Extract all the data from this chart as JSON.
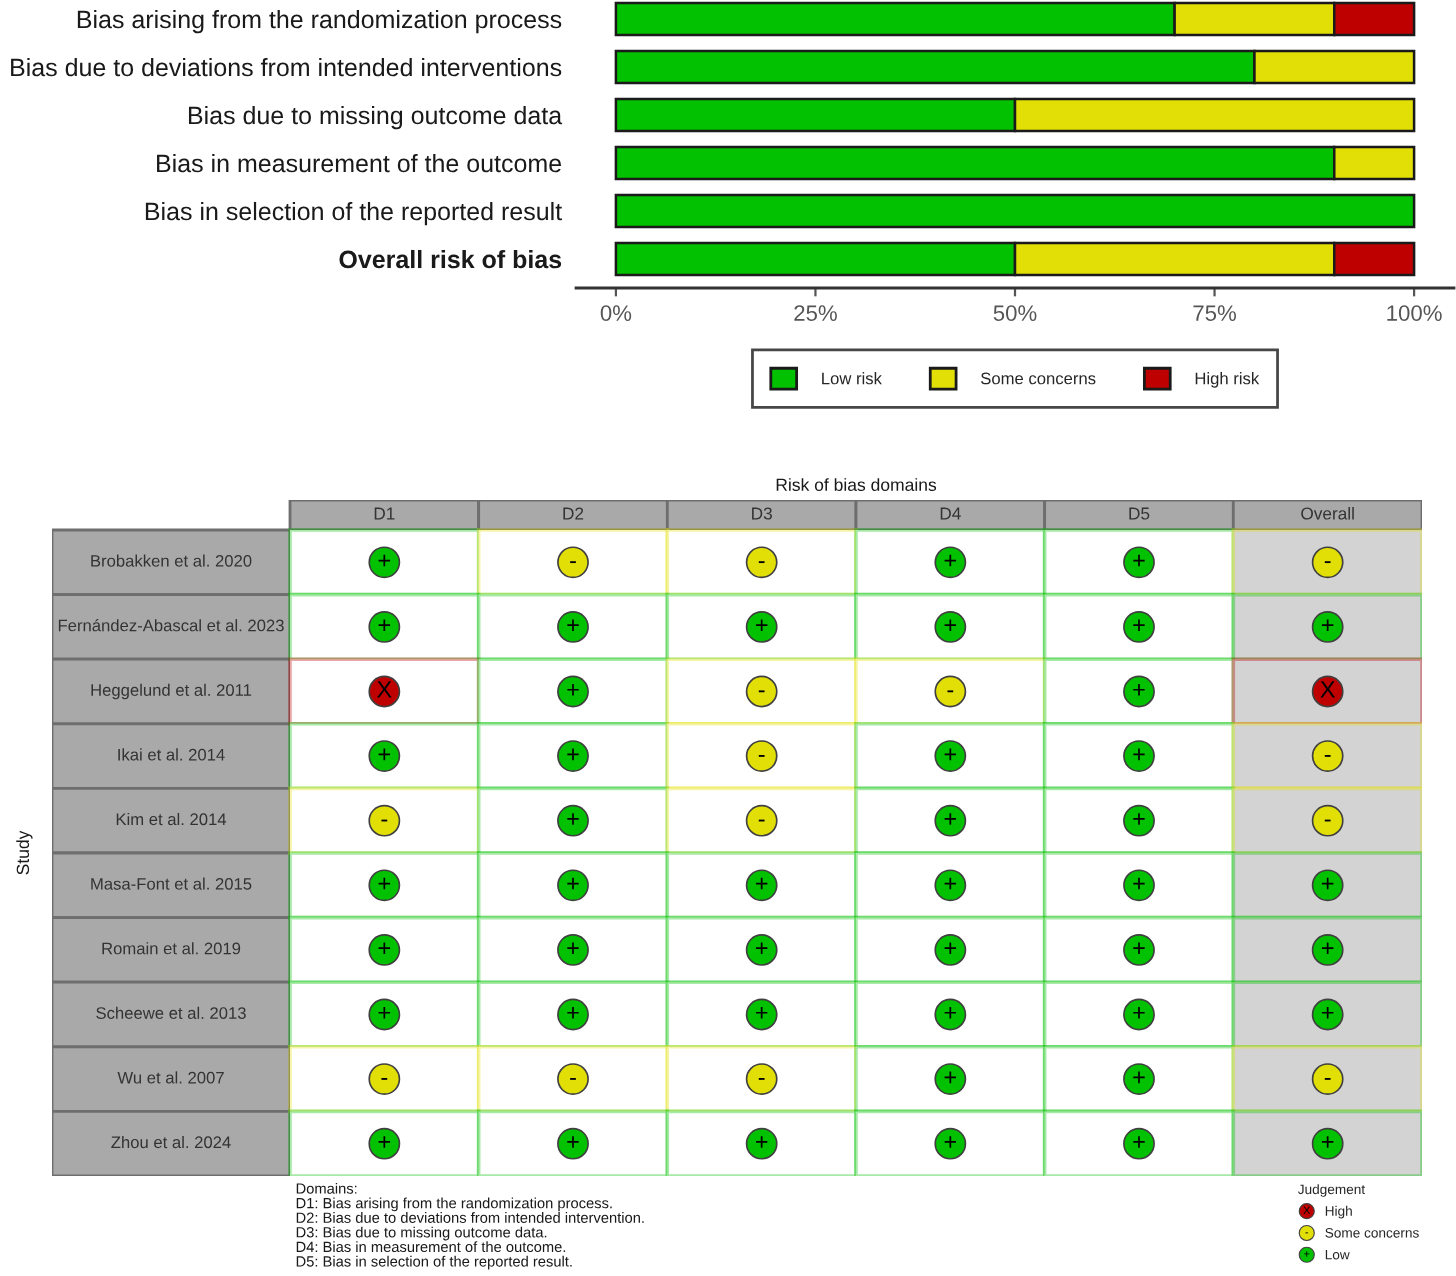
{
  "chart_data": [
    {
      "type": "bar",
      "orientation": "horizontal",
      "stacked": true,
      "categories": [
        "Bias arising from the randomization process",
        "Bias due to deviations from intended interventions",
        "Bias due to missing outcome data",
        "Bias in measurement of the outcome",
        "Bias in selection of the reported result",
        "Overall risk of bias"
      ],
      "series": [
        {
          "name": "Low risk",
          "color": "#02C100",
          "values": [
            70,
            80,
            50,
            90,
            100,
            50
          ]
        },
        {
          "name": "Some concerns",
          "color": "#E2DF07",
          "values": [
            20,
            20,
            50,
            10,
            0,
            40
          ]
        },
        {
          "name": "High risk",
          "color": "#BF0000",
          "values": [
            10,
            0,
            0,
            0,
            0,
            10
          ]
        }
      ],
      "xlim": [
        -5,
        105
      ],
      "xticks": [
        {
          "value": 0,
          "label": "0%"
        },
        {
          "value": 25,
          "label": "25%"
        },
        {
          "value": 50,
          "label": "50%"
        },
        {
          "value": 75,
          "label": "75%"
        },
        {
          "value": 100,
          "label": "100%"
        }
      ],
      "grid": false,
      "legend": "bottom"
    },
    {
      "type": "heatmap",
      "xlabel": "Risk of bias domains",
      "ylabel": "Study",
      "categories": [
        "D1",
        "D2",
        "D3",
        "D4",
        "D5",
        "Overall"
      ],
      "y_categories": [
        "Brobakken et al. 2020",
        "Fernández-Abascal et al. 2023",
        "Heggelund et al. 2011",
        "Ikai et al. 2014",
        "Kim et al. 2014",
        "Masa-Font et al. 2015",
        "Romain et al. 2019",
        "Scheewe et al. 2013",
        "Wu et al. 2007",
        "Zhou et al. 2024"
      ],
      "cells": [
        [
          "+",
          "-",
          "-",
          "+",
          "+",
          "-"
        ],
        [
          "+",
          "+",
          "+",
          "+",
          "+",
          "+"
        ],
        [
          "X",
          "+",
          "-",
          "-",
          "+",
          "X"
        ],
        [
          "+",
          "+",
          "-",
          "+",
          "+",
          "-"
        ],
        [
          "-",
          "+",
          "-",
          "+",
          "+",
          "-"
        ],
        [
          "+",
          "+",
          "+",
          "+",
          "+",
          "+"
        ],
        [
          "+",
          "+",
          "+",
          "+",
          "+",
          "+"
        ],
        [
          "+",
          "+",
          "+",
          "+",
          "+",
          "+"
        ],
        [
          "-",
          "-",
          "-",
          "+",
          "+",
          "-"
        ],
        [
          "+",
          "+",
          "+",
          "+",
          "+",
          "+"
        ]
      ],
      "colors": [
        [
          "#02C100",
          "#E2DF07",
          "#E2DF07",
          "#02C100",
          "#02C100",
          "#E2DF07"
        ],
        [
          "#02C100",
          "#02C100",
          "#02C100",
          "#02C100",
          "#02C100",
          "#02C100"
        ],
        [
          "#BF0000",
          "#02C100",
          "#E2DF07",
          "#E2DF07",
          "#02C100",
          "#BF0000"
        ],
        [
          "#02C100",
          "#02C100",
          "#E2DF07",
          "#02C100",
          "#02C100",
          "#E2DF07"
        ],
        [
          "#E2DF07",
          "#02C100",
          "#E2DF07",
          "#02C100",
          "#02C100",
          "#E2DF07"
        ],
        [
          "#02C100",
          "#02C100",
          "#02C100",
          "#02C100",
          "#02C100",
          "#02C100"
        ],
        [
          "#02C100",
          "#02C100",
          "#02C100",
          "#02C100",
          "#02C100",
          "#02C100"
        ],
        [
          "#02C100",
          "#02C100",
          "#02C100",
          "#02C100",
          "#02C100",
          "#02C100"
        ],
        [
          "#E2DF07",
          "#E2DF07",
          "#E2DF07",
          "#02C100",
          "#02C100",
          "#E2DF07"
        ],
        [
          "#02C100",
          "#02C100",
          "#02C100",
          "#02C100",
          "#02C100",
          "#02C100"
        ]
      ],
      "legend_title": "Judgement",
      "series": [
        {
          "name": "High",
          "color": "#BF0000",
          "values": [
            null,
            null,
            null,
            null,
            null,
            null
          ]
        },
        {
          "name": "Some concerns",
          "color": "#E2DF07",
          "values": [
            null,
            null,
            null,
            null,
            null,
            null
          ]
        },
        {
          "name": "Low",
          "color": "#02C100",
          "values": [
            null,
            null,
            null,
            null,
            null,
            null
          ]
        }
      ],
      "legend": "bottom right",
      "annotations": [
        "Domains:\nD1: Bias arising from the randomization process.\nD2: Bias due to deviations from intended intervention.\nD3: Bias due to missing outcome data.\nD4: Bias in measurement of the outcome.\nD5: Bias in selection of the reported result."
      ]
    }
  ]
}
